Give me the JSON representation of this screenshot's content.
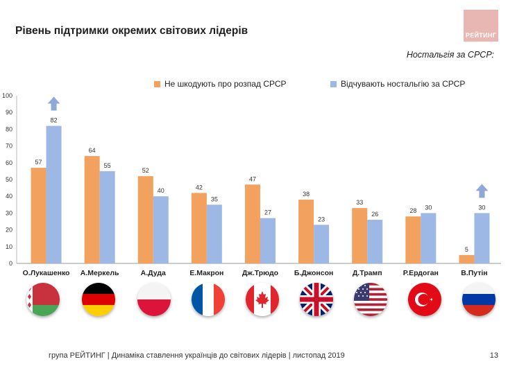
{
  "page": {
    "title": "Рівень підтримки окремих світових лідерів",
    "logo_text": "РЕЙТИНГ",
    "subtitle": "Ностальгія за СРСР:",
    "footer": "група РЕЙТИНГ | Динаміка ставлення українців до світових лідерів  | листопад 2019",
    "page_number": "13"
  },
  "colors": {
    "orange": "#F2A15E",
    "blue": "#9DB8E4",
    "arrow": "#8FA8D6"
  },
  "chart_data": {
    "type": "bar",
    "categories": [
      "О.Лукашенко",
      "А.Меркель",
      "А.Дуда",
      "Е.Макрон",
      "Дж.Трюдо",
      "Б.Джонсон",
      "Д.Трамп",
      "Р.Ердоган",
      "В.Путін"
    ],
    "series": [
      {
        "name": "Не шкодують про розпад СРСР",
        "values": [
          57,
          64,
          52,
          42,
          47,
          38,
          33,
          28,
          5
        ]
      },
      {
        "name": "Відчувають ностальгію за СРСР",
        "values": [
          82,
          55,
          40,
          35,
          27,
          23,
          26,
          30,
          30
        ]
      }
    ],
    "ylim": [
      0,
      100
    ],
    "yticks": [
      "0",
      "10",
      "20",
      "30",
      "40",
      "50",
      "60",
      "70",
      "80",
      "90",
      "100"
    ],
    "legend_position": "top",
    "arrows_over_categories": [
      "О.Лукашенко",
      "В.Путін"
    ],
    "grid": false
  },
  "flags": [
    "belarus-flag-icon",
    "germany-flag-icon",
    "poland-flag-icon",
    "france-flag-icon",
    "canada-flag-icon",
    "uk-flag-icon",
    "usa-flag-icon",
    "turkey-flag-icon",
    "russia-flag-icon"
  ]
}
